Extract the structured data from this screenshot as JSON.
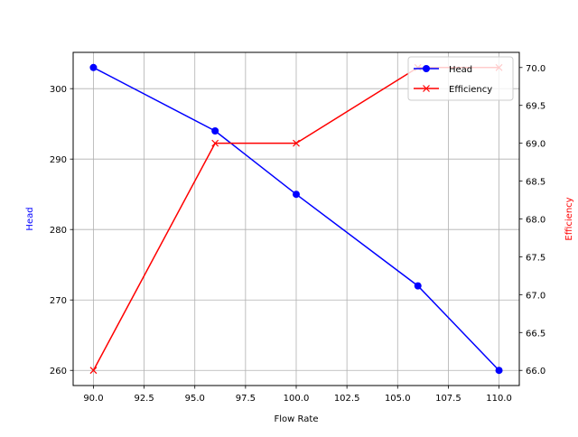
{
  "chart_data": {
    "type": "line",
    "title": "",
    "xlabel": "Flow Rate",
    "ylabel": "Head",
    "ylabel_right": "Efficiency",
    "x": [
      90,
      96,
      100,
      106,
      110
    ],
    "series": [
      {
        "name": "Head",
        "axis": "left",
        "color": "#0000ff",
        "marker": "o",
        "values": [
          303,
          294,
          285,
          272,
          260
        ]
      },
      {
        "name": "Efficiency",
        "axis": "right",
        "color": "#ff0000",
        "marker": "x",
        "values": [
          66,
          69,
          69,
          70,
          70
        ]
      }
    ],
    "xlim": [
      89.0,
      111.0
    ],
    "ylim": [
      257.85,
      305.15
    ],
    "ylim_right": [
      65.8,
      70.2
    ],
    "xticks": [
      "90.0",
      "92.5",
      "95.0",
      "97.5",
      "100.0",
      "102.5",
      "105.0",
      "107.5",
      "110.0"
    ],
    "yticks": [
      "260",
      "270",
      "280",
      "290",
      "300"
    ],
    "yticks_right": [
      "66.0",
      "66.5",
      "67.0",
      "67.5",
      "68.0",
      "68.5",
      "69.0",
      "69.5",
      "70.0"
    ],
    "grid": true,
    "legend_position": "upper right"
  },
  "colors": {
    "head": "#0000ff",
    "efficiency": "#ff0000",
    "grid": "#b0b0b0",
    "axes": "#000000"
  },
  "legend": {
    "items": [
      {
        "label": "Head",
        "icon": "line-circle-marker-icon"
      },
      {
        "label": "Efficiency",
        "icon": "line-x-marker-icon"
      }
    ]
  }
}
